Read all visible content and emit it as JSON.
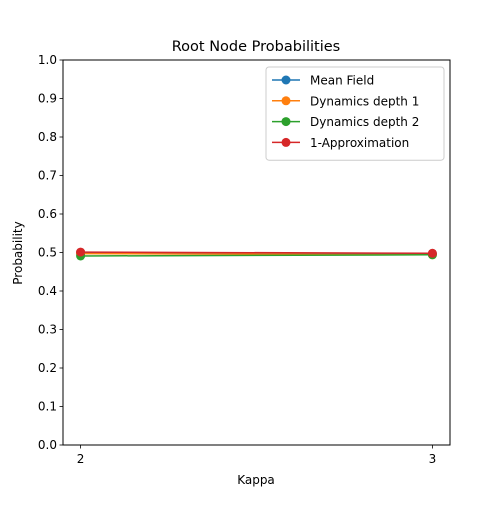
{
  "chart_data": {
    "type": "line",
    "title": "Root Node Probabilities",
    "xlabel": "Kappa",
    "ylabel": "Probability",
    "x": [
      2,
      3
    ],
    "xticks": [
      "2",
      "3"
    ],
    "xlim": [
      1.95,
      3.05
    ],
    "ylim": [
      0.0,
      1.0
    ],
    "yticks": [
      "0.0",
      "0.1",
      "0.2",
      "0.3",
      "0.4",
      "0.5",
      "0.6",
      "0.7",
      "0.8",
      "0.9",
      "1.0"
    ],
    "grid": false,
    "legend_position": "top-right",
    "series": [
      {
        "name": "Mean Field",
        "color": "#1f77b4",
        "marker": "circle",
        "values": [
          0.5,
          0.497
        ]
      },
      {
        "name": "Dynamics depth 1",
        "color": "#ff7f0e",
        "marker": "circle",
        "values": [
          0.497,
          0.494
        ]
      },
      {
        "name": "Dynamics depth 2",
        "color": "#2ca02c",
        "marker": "circle",
        "values": [
          0.491,
          0.494
        ]
      },
      {
        "name": "1-Approximation",
        "color": "#d62728",
        "marker": "circle",
        "values": [
          0.501,
          0.498
        ]
      }
    ]
  }
}
